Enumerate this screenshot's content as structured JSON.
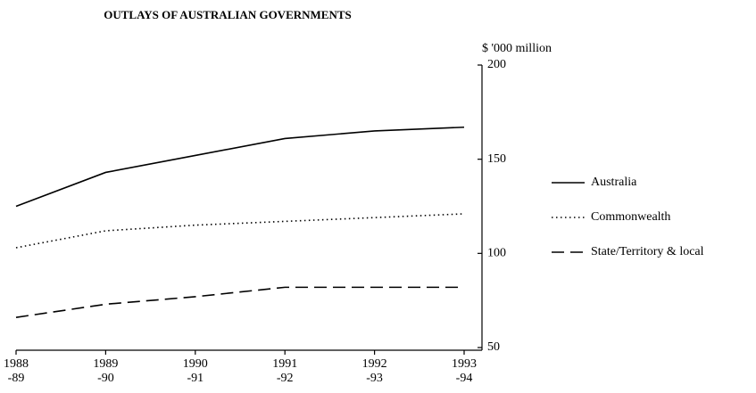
{
  "chart_data": {
    "type": "line",
    "title": "OUTLAYS OF AUSTRALIAN GOVERNMENTS",
    "y_axis_label": "$ '000 million",
    "categories": [
      [
        "1988",
        "-89"
      ],
      [
        "1989",
        "-90"
      ],
      [
        "1990",
        "-91"
      ],
      [
        "1991",
        "-92"
      ],
      [
        "1992",
        "-93"
      ],
      [
        "1993",
        "-94"
      ]
    ],
    "series": [
      {
        "name": "Australia",
        "color": "#000000",
        "style": "solid",
        "values": [
          125,
          143,
          152,
          161,
          165,
          167
        ]
      },
      {
        "name": "Commonwealth",
        "color": "#000000",
        "style": "dotted",
        "values": [
          103,
          112,
          115,
          117,
          119,
          121
        ]
      },
      {
        "name": "State/Territory & local",
        "color": "#000000",
        "style": "dashed",
        "values": [
          66,
          73,
          77,
          82,
          82,
          82
        ]
      }
    ],
    "ylim": [
      50,
      200
    ],
    "yticks": [
      50,
      100,
      150,
      200
    ],
    "y_axis_side": "right",
    "grid": false,
    "legend": "right"
  }
}
